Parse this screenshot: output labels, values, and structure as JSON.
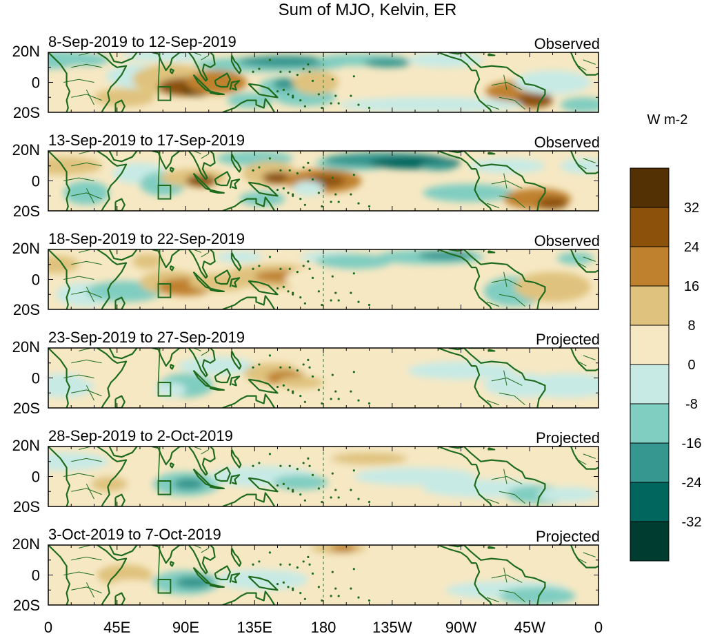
{
  "title": "Sum of MJO, Kelvin, ER",
  "units": "W m-2",
  "lat_labels": [
    "20N",
    "0",
    "20S"
  ],
  "lon_labels": [
    "0",
    "45E",
    "90E",
    "135E",
    "180",
    "135W",
    "90W",
    "45W",
    "0"
  ],
  "panels": [
    {
      "date_range": "8-Sep-2019 to 12-Sep-2019",
      "status": "Observed"
    },
    {
      "date_range": "13-Sep-2019 to 17-Sep-2019",
      "status": "Observed"
    },
    {
      "date_range": "18-Sep-2019 to 22-Sep-2019",
      "status": "Observed"
    },
    {
      "date_range": "23-Sep-2019 to 27-Sep-2019",
      "status": "Projected"
    },
    {
      "date_range": "28-Sep-2019 to 2-Oct-2019",
      "status": "Projected"
    },
    {
      "date_range": "3-Oct-2019 to 7-Oct-2019",
      "status": "Projected"
    }
  ],
  "colorbar": {
    "tick_labels": [
      "32",
      "24",
      "16",
      "8",
      "0",
      "-8",
      "-16",
      "-24",
      "-32"
    ],
    "colors": [
      "#543005",
      "#8c510a",
      "#bf812d",
      "#dfc27d",
      "#f6e8c3",
      "#c7eae5",
      "#80cdc1",
      "#35978f",
      "#01665e",
      "#003c30"
    ]
  },
  "map_colors": {
    "coast": "#1e6b1e",
    "dateline": "#4a8a4a"
  }
}
